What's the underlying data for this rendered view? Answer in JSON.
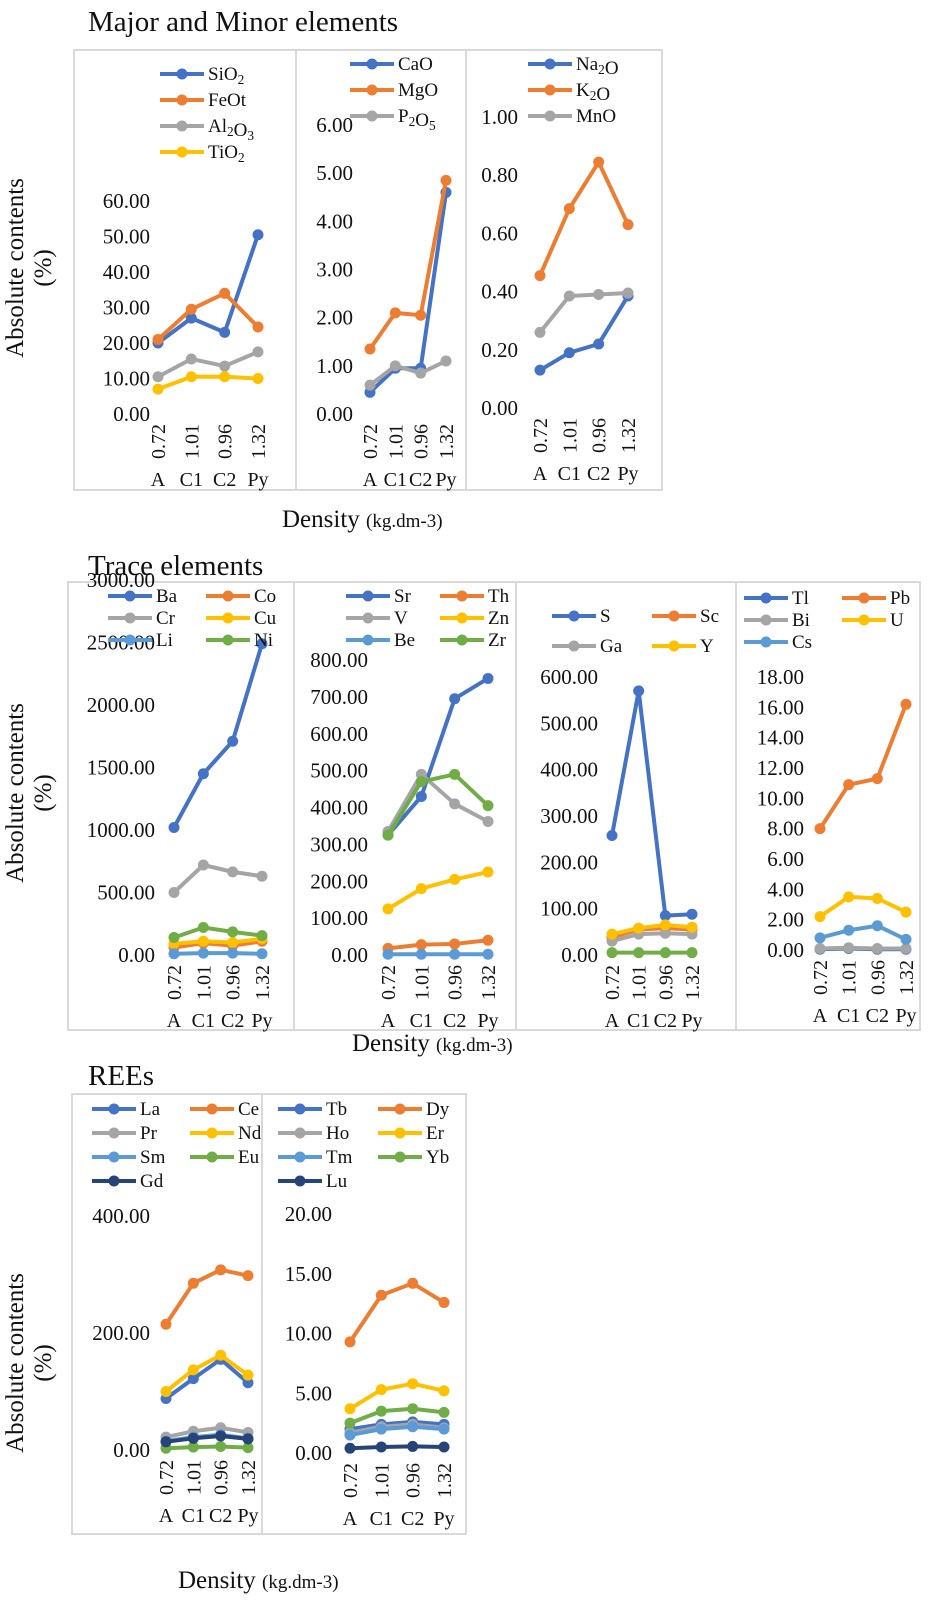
{
  "sections": [
    {
      "title": "Major and Minor elements",
      "ylabel_line1": "Absolute contents",
      "ylabel_line2": "(%)",
      "xlabel": "Density",
      "xlabel_unit": "(kg.dm-3)"
    },
    {
      "title": "Trace elements",
      "ylabel_line1": "Absolute contents",
      "ylabel_line2": "(%)",
      "xlabel": "Density",
      "xlabel_unit": "(kg.dm-3)"
    },
    {
      "title": "REEs",
      "ylabel_line1": "Absolute contents",
      "ylabel_line2": "(%)",
      "xlabel": "Density",
      "xlabel_unit": "(kg.dm-3)"
    }
  ],
  "colors": {
    "blue": "#4472c4",
    "orange": "#ed7d31",
    "gray": "#a5a5a5",
    "yellow": "#ffc000",
    "lightblue": "#5b9bd5",
    "green": "#70ad47",
    "navy": "#264478",
    "panel_border": "#d9d9d9"
  },
  "chart_data": [
    {
      "type": "line",
      "categories": [
        "0.72",
        "1.01",
        "0.96",
        "1.32"
      ],
      "category_labels": [
        "A",
        "C1",
        "C2",
        "Py"
      ],
      "ylim": [
        0,
        60
      ],
      "yticks": [
        "0.00",
        "10.00",
        "20.00",
        "30.00",
        "40.00",
        "50.00",
        "60.00"
      ],
      "series": [
        {
          "name": "SiO2",
          "color": "#4472c4",
          "values": [
            20,
            27,
            23,
            50.5
          ]
        },
        {
          "name": "FeOt",
          "color": "#ed7d31",
          "values": [
            21,
            29.5,
            34,
            24.5
          ]
        },
        {
          "name": "Al2O3",
          "color": "#a5a5a5",
          "values": [
            10.5,
            15.5,
            13.5,
            17.5
          ]
        },
        {
          "name": "TiO2",
          "color": "#ffc000",
          "values": [
            7,
            10.5,
            10.5,
            10
          ]
        }
      ]
    },
    {
      "type": "line",
      "categories": [
        "0.72",
        "1.01",
        "0.96",
        "1.32"
      ],
      "category_labels": [
        "A",
        "C1",
        "C2",
        "Py"
      ],
      "ylim": [
        0,
        6
      ],
      "yticks": [
        "0.00",
        "1.00",
        "2.00",
        "3.00",
        "4.00",
        "5.00",
        "6.00"
      ],
      "series": [
        {
          "name": "CaO",
          "color": "#4472c4",
          "values": [
            0.45,
            0.95,
            0.95,
            4.6
          ]
        },
        {
          "name": "MgO",
          "color": "#ed7d31",
          "values": [
            1.35,
            2.1,
            2.05,
            4.85
          ]
        },
        {
          "name": "P2O5",
          "color": "#a5a5a5",
          "values": [
            0.6,
            1.0,
            0.85,
            1.1
          ]
        }
      ]
    },
    {
      "type": "line",
      "categories": [
        "0.72",
        "1.01",
        "0.96",
        "1.32"
      ],
      "category_labels": [
        "A",
        "C1",
        "C2",
        "Py"
      ],
      "ylim": [
        0,
        1
      ],
      "yticks": [
        "0.00",
        "0.20",
        "0.40",
        "0.60",
        "0.80",
        "1.00"
      ],
      "series": [
        {
          "name": "Na2O",
          "color": "#4472c4",
          "values": [
            0.13,
            0.19,
            0.22,
            0.385
          ]
        },
        {
          "name": "K2O",
          "color": "#ed7d31",
          "values": [
            0.455,
            0.685,
            0.845,
            0.63
          ]
        },
        {
          "name": "MnO",
          "color": "#a5a5a5",
          "values": [
            0.26,
            0.385,
            0.39,
            0.395
          ]
        }
      ]
    },
    {
      "type": "line",
      "categories": [
        "0.72",
        "1.01",
        "0.96",
        "1.32"
      ],
      "category_labels": [
        "A",
        "C1",
        "C2",
        "Py"
      ],
      "ylim": [
        0,
        3000
      ],
      "yticks": [
        "0.00",
        "500.00",
        "1000.00",
        "1500.00",
        "2000.00",
        "2500.00",
        "3000.00"
      ],
      "series": [
        {
          "name": "Ba",
          "color": "#4472c4",
          "values": [
            1020,
            1450,
            1710,
            2490
          ]
        },
        {
          "name": "Co",
          "color": "#ed7d31",
          "values": [
            60,
            95,
            75,
            110
          ]
        },
        {
          "name": "Cr",
          "color": "#a5a5a5",
          "values": [
            500,
            720,
            665,
            630
          ]
        },
        {
          "name": "Cu",
          "color": "#ffc000",
          "values": [
            90,
            110,
            100,
            130
          ]
        },
        {
          "name": "Li",
          "color": "#5b9bd5",
          "values": [
            10,
            15,
            15,
            10
          ]
        },
        {
          "name": "Ni",
          "color": "#70ad47",
          "values": [
            140,
            220,
            185,
            155
          ]
        }
      ]
    },
    {
      "type": "line",
      "categories": [
        "0.72",
        "1.01",
        "0.96",
        "1.32"
      ],
      "category_labels": [
        "A",
        "C1",
        "C2",
        "Py"
      ],
      "ylim": [
        0,
        800
      ],
      "yticks": [
        "0.00",
        "100.00",
        "200.00",
        "300.00",
        "400.00",
        "500.00",
        "600.00",
        "700.00",
        "800.00"
      ],
      "series": [
        {
          "name": "Sr",
          "color": "#4472c4",
          "values": [
            325,
            430,
            695,
            750
          ]
        },
        {
          "name": "Th",
          "color": "#ed7d31",
          "values": [
            18,
            28,
            30,
            40
          ]
        },
        {
          "name": "V",
          "color": "#a5a5a5",
          "values": [
            335,
            490,
            410,
            362
          ]
        },
        {
          "name": "Zn",
          "color": "#ffc000",
          "values": [
            125,
            180,
            205,
            225
          ]
        },
        {
          "name": "Be",
          "color": "#5b9bd5",
          "values": [
            2,
            2,
            2,
            2
          ]
        },
        {
          "name": "Zr",
          "color": "#70ad47",
          "values": [
            325,
            470,
            490,
            405
          ]
        }
      ]
    },
    {
      "type": "line",
      "categories": [
        "0.72",
        "1.01",
        "0.96",
        "1.32"
      ],
      "category_labels": [
        "A",
        "C1",
        "C2",
        "Py"
      ],
      "ylim": [
        0,
        600
      ],
      "yticks": [
        "0.00",
        "100.00",
        "200.00",
        "300.00",
        "400.00",
        "500.00",
        "600.00"
      ],
      "series": [
        {
          "name": "S",
          "color": "#4472c4",
          "values": [
            258,
            570,
            85,
            88
          ]
        },
        {
          "name": "Sc",
          "color": "#ed7d31",
          "values": [
            38,
            55,
            58,
            55
          ]
        },
        {
          "name": "Ga",
          "color": "#a5a5a5",
          "values": [
            30,
            45,
            47,
            45
          ]
        },
        {
          "name": "Y",
          "color": "#ffc000",
          "values": [
            45,
            58,
            65,
            60
          ]
        },
        {
          "name": "",
          "color": "#70ad47",
          "values": [
            5,
            5,
            5,
            5
          ]
        }
      ]
    },
    {
      "type": "line",
      "categories": [
        "0.72",
        "1.01",
        "0.96",
        "1.32"
      ],
      "category_labels": [
        "A",
        "C1",
        "C2",
        "Py"
      ],
      "ylim": [
        0,
        18
      ],
      "yticks": [
        "0.00",
        "2.00",
        "4.00",
        "6.00",
        "8.00",
        "10.00",
        "12.00",
        "14.00",
        "16.00",
        "18.00"
      ],
      "series": [
        {
          "name": "Tl",
          "color": "#4472c4",
          "values": [
            0.05,
            0.1,
            0.05,
            0.05
          ]
        },
        {
          "name": "Pb",
          "color": "#ed7d31",
          "values": [
            8,
            10.9,
            11.3,
            16.2
          ]
        },
        {
          "name": "Bi",
          "color": "#a5a5a5",
          "values": [
            0.1,
            0.15,
            0.1,
            0.1
          ]
        },
        {
          "name": "U",
          "color": "#ffc000",
          "values": [
            2.2,
            3.5,
            3.4,
            2.5
          ]
        },
        {
          "name": "Cs",
          "color": "#5b9bd5",
          "values": [
            0.8,
            1.3,
            1.6,
            0.7
          ]
        }
      ]
    },
    {
      "type": "line",
      "categories": [
        "0.72",
        "1.01",
        "0.96",
        "1.32"
      ],
      "category_labels": [
        "A",
        "C1",
        "C2",
        "Py"
      ],
      "ylim": [
        0,
        400
      ],
      "yticks": [
        "0.00",
        "200.00",
        "400.00"
      ],
      "series": [
        {
          "name": "La",
          "color": "#4472c4",
          "values": [
            88,
            122,
            155,
            115
          ]
        },
        {
          "name": "Ce",
          "color": "#ed7d31",
          "values": [
            215,
            285,
            308,
            298
          ]
        },
        {
          "name": "Pr",
          "color": "#a5a5a5",
          "values": [
            22,
            32,
            38,
            30
          ]
        },
        {
          "name": "Nd",
          "color": "#ffc000",
          "values": [
            100,
            137,
            162,
            128
          ]
        },
        {
          "name": "Sm",
          "color": "#5b9bd5",
          "values": [
            15,
            22,
            26,
            20
          ]
        },
        {
          "name": "Eu",
          "color": "#70ad47",
          "values": [
            3,
            5,
            6,
            4
          ]
        },
        {
          "name": "Gd",
          "color": "#264478",
          "values": [
            14,
            20,
            24,
            19
          ]
        }
      ]
    },
    {
      "type": "line",
      "categories": [
        "0.72",
        "1.01",
        "0.96",
        "1.32"
      ],
      "category_labels": [
        "A",
        "C1",
        "C2",
        "Py"
      ],
      "ylim": [
        0,
        20
      ],
      "yticks": [
        "0.00",
        "5.00",
        "10.00",
        "15.00",
        "20.00"
      ],
      "series": [
        {
          "name": "Tb",
          "color": "#4472c4",
          "values": [
            2.0,
            2.4,
            2.6,
            2.4
          ]
        },
        {
          "name": "Dy",
          "color": "#ed7d31",
          "values": [
            9.3,
            13.2,
            14.2,
            12.6
          ]
        },
        {
          "name": "Ho",
          "color": "#a5a5a5",
          "values": [
            1.7,
            2.2,
            2.4,
            2.1
          ]
        },
        {
          "name": "Er",
          "color": "#ffc000",
          "values": [
            3.7,
            5.3,
            5.8,
            5.2
          ]
        },
        {
          "name": "Tm",
          "color": "#5b9bd5",
          "values": [
            1.5,
            2.0,
            2.2,
            2.0
          ]
        },
        {
          "name": "Yb",
          "color": "#70ad47",
          "values": [
            2.5,
            3.5,
            3.7,
            3.4
          ]
        },
        {
          "name": "Lu",
          "color": "#264478",
          "values": [
            0.4,
            0.5,
            0.55,
            0.5
          ]
        }
      ]
    }
  ]
}
